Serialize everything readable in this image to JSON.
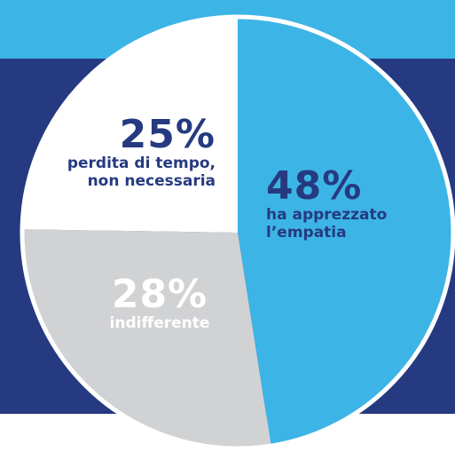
{
  "chart_data": {
    "type": "pie",
    "categories": [
      "ha apprezzato\nl’empatia",
      "indifferente",
      "perdita di tempo,\nnon necessaria"
    ],
    "values": [
      48,
      28,
      25
    ],
    "value_labels": [
      "48%",
      "28%",
      "25%"
    ],
    "colors": [
      "#3db4e6",
      "#d1d2d4",
      "#ffffff"
    ],
    "label_colors": [
      "#253a80",
      "#ffffff",
      "#253a80"
    ]
  }
}
